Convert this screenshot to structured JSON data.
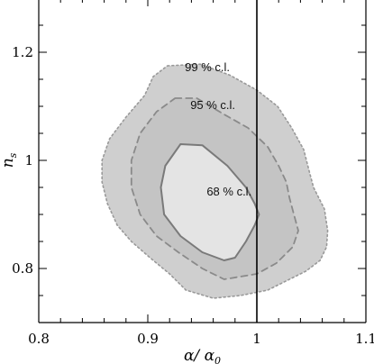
{
  "chart_data": {
    "type": "contour",
    "xlabel": "α/ α",
    "xlabel_subscript": "0",
    "ylabel": "n",
    "ylabel_subscript": "s",
    "xlim": [
      0.8,
      1.1
    ],
    "ylim": [
      0.7,
      1.3
    ],
    "xticks": [
      0.8,
      0.9,
      1.0,
      1.1
    ],
    "xtick_labels": [
      "0.8",
      "0.9",
      "1",
      "1.1"
    ],
    "yticks": [
      0.8,
      1.0,
      1.2
    ],
    "ytick_labels": [
      "0.8",
      "1",
      "1.2"
    ],
    "reference_line_x": 1.0,
    "grid": false,
    "regions": [
      {
        "name": "99 % c.l.",
        "label": "99 % c.l.",
        "fill": "#cfcfcf",
        "stroke": "#999999",
        "dash": "dotted",
        "label_at": [
          0.934,
          1.165
        ],
        "points": [
          [
            0.918,
            1.175
          ],
          [
            0.948,
            1.178
          ],
          [
            0.975,
            1.158
          ],
          [
            1.0,
            1.13
          ],
          [
            1.019,
            1.1
          ],
          [
            1.032,
            1.06
          ],
          [
            1.043,
            1.02
          ],
          [
            1.048,
            0.98
          ],
          [
            1.052,
            0.95
          ],
          [
            1.062,
            0.91
          ],
          [
            1.065,
            0.87
          ],
          [
            1.064,
            0.84
          ],
          [
            1.058,
            0.815
          ],
          [
            1.045,
            0.795
          ],
          [
            1.025,
            0.775
          ],
          [
            1.01,
            0.76
          ],
          [
            0.985,
            0.75
          ],
          [
            0.96,
            0.745
          ],
          [
            0.935,
            0.76
          ],
          [
            0.92,
            0.79
          ],
          [
            0.902,
            0.82
          ],
          [
            0.885,
            0.85
          ],
          [
            0.872,
            0.88
          ],
          [
            0.863,
            0.92
          ],
          [
            0.858,
            0.96
          ],
          [
            0.858,
            1.0
          ],
          [
            0.865,
            1.04
          ],
          [
            0.88,
            1.08
          ],
          [
            0.897,
            1.12
          ],
          [
            0.905,
            1.155
          ]
        ]
      },
      {
        "name": "95 % c.l.",
        "label": "95 % c.l.",
        "fill": "#c4c4c4",
        "stroke": "#8a8a8a",
        "dash": "dashed",
        "label_at": [
          0.939,
          1.095
        ],
        "points": [
          [
            0.925,
            1.115
          ],
          [
            0.945,
            1.115
          ],
          [
            0.97,
            1.085
          ],
          [
            0.992,
            1.06
          ],
          [
            1.01,
            1.025
          ],
          [
            1.02,
            0.99
          ],
          [
            1.027,
            0.96
          ],
          [
            1.03,
            0.93
          ],
          [
            1.034,
            0.9
          ],
          [
            1.038,
            0.87
          ],
          [
            1.033,
            0.84
          ],
          [
            1.018,
            0.81
          ],
          [
            1.0,
            0.79
          ],
          [
            0.97,
            0.78
          ],
          [
            0.95,
            0.8
          ],
          [
            0.928,
            0.83
          ],
          [
            0.908,
            0.86
          ],
          [
            0.893,
            0.9
          ],
          [
            0.885,
            0.95
          ],
          [
            0.885,
            1.0
          ],
          [
            0.893,
            1.05
          ],
          [
            0.908,
            1.09
          ]
        ]
      },
      {
        "name": "68 % c.l.",
        "label": "68 % c.l.",
        "fill": "#e4e4e4",
        "stroke": "#7a7a7a",
        "dash": "solid",
        "label_at": [
          0.954,
          0.935
        ],
        "points": [
          [
            0.93,
            1.03
          ],
          [
            0.95,
            1.028
          ],
          [
            0.973,
            0.99
          ],
          [
            0.99,
            0.95
          ],
          [
            0.998,
            0.92
          ],
          [
            1.002,
            0.9
          ],
          [
            0.998,
            0.88
          ],
          [
            0.99,
            0.85
          ],
          [
            0.98,
            0.82
          ],
          [
            0.97,
            0.815
          ],
          [
            0.95,
            0.83
          ],
          [
            0.93,
            0.86
          ],
          [
            0.915,
            0.9
          ],
          [
            0.912,
            0.95
          ],
          [
            0.916,
            0.99
          ]
        ]
      }
    ]
  }
}
